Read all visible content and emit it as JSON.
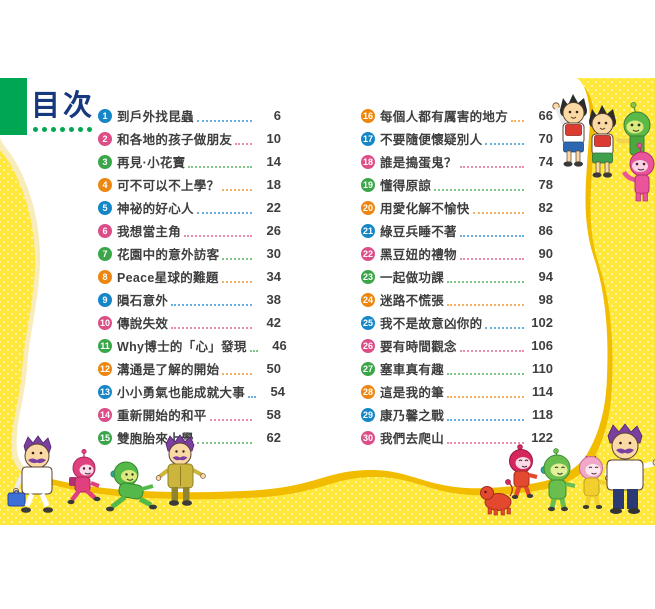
{
  "header": {
    "title": "目次",
    "dots_count": 7,
    "title_color": "#16387E",
    "corner_square_color": "#00A651"
  },
  "toc": {
    "badge_colors": [
      "#1587C9",
      "#DD4E88",
      "#3BA649",
      "#EE8711"
    ],
    "text_color": "#3E3E3E",
    "left_items": [
      {
        "num": 1,
        "title": "到戶外找昆蟲",
        "page": 6
      },
      {
        "num": 2,
        "title": "和各地的孩子做朋友",
        "page": 10
      },
      {
        "num": 3,
        "title": "再見·小花寶",
        "page": 14
      },
      {
        "num": 4,
        "title": "可不可以不上學？",
        "page": 18
      },
      {
        "num": 5,
        "title": "神祕的好心人",
        "page": 22
      },
      {
        "num": 6,
        "title": "我想當主角",
        "page": 26
      },
      {
        "num": 7,
        "title": "花園中的意外訪客",
        "page": 30
      },
      {
        "num": 8,
        "title": "Peace星球的難題",
        "page": 34
      },
      {
        "num": 9,
        "title": "隕石意外",
        "page": 38
      },
      {
        "num": 10,
        "title": "傳說失效",
        "page": 42
      },
      {
        "num": 11,
        "title": "Why博士的「心」發現",
        "page": 46
      },
      {
        "num": 12,
        "title": "溝通是了解的開始",
        "page": 50
      },
      {
        "num": 13,
        "title": "小小勇氣也能成就大事",
        "page": 54
      },
      {
        "num": 14,
        "title": "重新開始的和平",
        "page": 58
      },
      {
        "num": 15,
        "title": "雙胞胎來上學",
        "page": 62
      }
    ],
    "right_items": [
      {
        "num": 16,
        "title": "每個人都有厲害的地方",
        "page": 66
      },
      {
        "num": 17,
        "title": "不要隨便懷疑別人",
        "page": 70
      },
      {
        "num": 18,
        "title": "誰是搗蛋鬼？",
        "page": 74
      },
      {
        "num": 19,
        "title": "懂得原諒",
        "page": 78
      },
      {
        "num": 20,
        "title": "用愛化解不愉快",
        "page": 82
      },
      {
        "num": 21,
        "title": "綠豆兵睡不著",
        "page": 86
      },
      {
        "num": 22,
        "title": "黑豆妞的禮物",
        "page": 90
      },
      {
        "num": 23,
        "title": "一起做功課",
        "page": 94
      },
      {
        "num": 24,
        "title": "迷路不慌張",
        "page": 98
      },
      {
        "num": 25,
        "title": "我不是故意凶你的",
        "page": 102
      },
      {
        "num": 26,
        "title": "要有時間觀念",
        "page": 106
      },
      {
        "num": 27,
        "title": "塞車真有趣",
        "page": 110
      },
      {
        "num": 28,
        "title": "這是我的筆",
        "page": 114
      },
      {
        "num": 29,
        "title": "康乃馨之戰",
        "page": 118
      },
      {
        "num": 30,
        "title": "我們去爬山",
        "page": 122
      }
    ]
  },
  "page_colors": {
    "background_yellow": "#FFE83A",
    "pattern_dot_yellow": "#FFF4A0",
    "gold_accent": "#F2BD00",
    "cream_edge": "#F8ECBC",
    "panel_white": "#FFFFFF"
  },
  "characters": {
    "top_right": [
      "schoolboy-blue-shorts",
      "schoolboy-green-shorts",
      "green-alien",
      "pink-alien"
    ],
    "bottom_left": [
      "man-white-coat-with-briefcase",
      "pink-alien-running",
      "green-alien-running",
      "man-olive-jacket"
    ],
    "bottom_right": [
      "red-pet-creature",
      "red-alien",
      "green-alien",
      "pink-yellow-alien",
      "man-white-shirt"
    ]
  }
}
